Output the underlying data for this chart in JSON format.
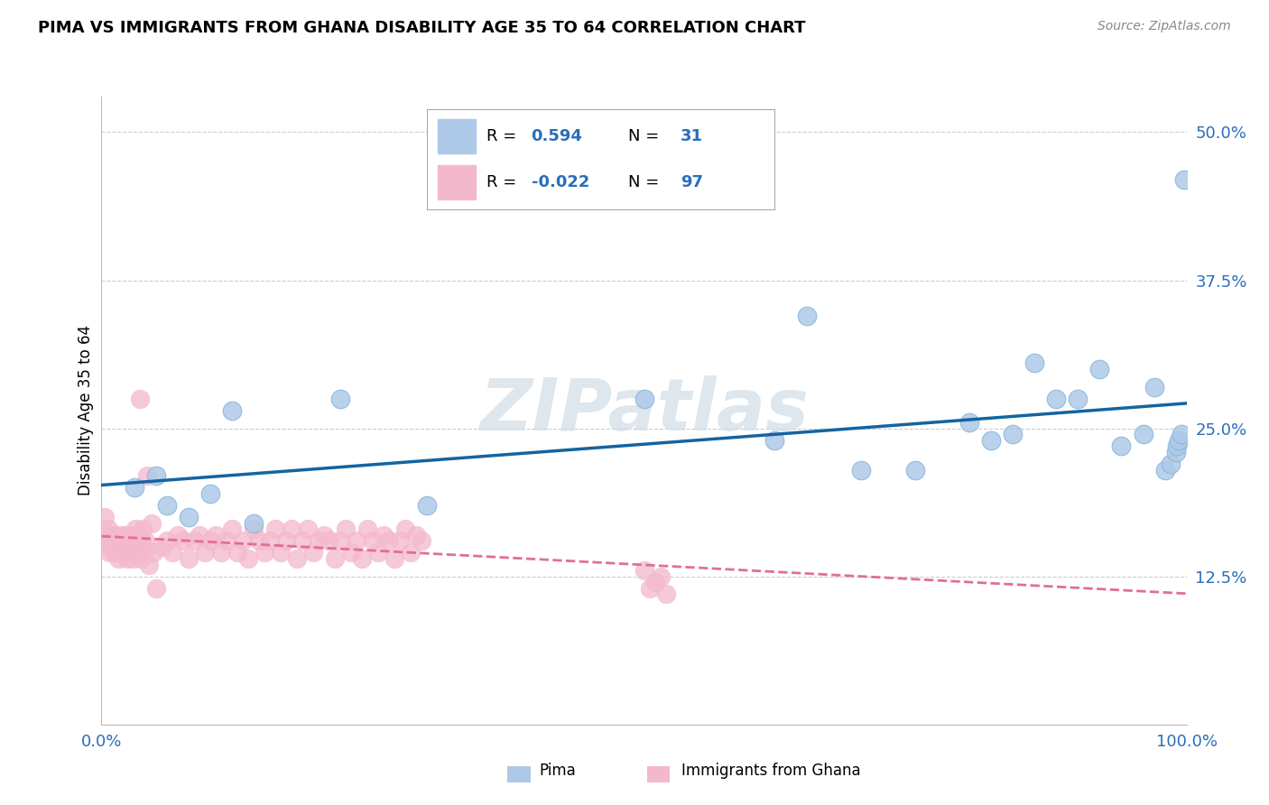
{
  "title": "PIMA VS IMMIGRANTS FROM GHANA DISABILITY AGE 35 TO 64 CORRELATION CHART",
  "source": "Source: ZipAtlas.com",
  "ylabel": "Disability Age 35 to 64",
  "xlim": [
    0.0,
    1.0
  ],
  "ylim": [
    0.0,
    0.53
  ],
  "yticks": [
    0.125,
    0.25,
    0.375,
    0.5
  ],
  "ytick_labels": [
    "12.5%",
    "25.0%",
    "37.5%",
    "50.0%"
  ],
  "xticks": [
    0.0,
    1.0
  ],
  "xtick_labels": [
    "0.0%",
    "100.0%"
  ],
  "pima_R": 0.594,
  "pima_N": 31,
  "ghana_R": -0.022,
  "ghana_N": 97,
  "pima_color": "#aec9e8",
  "ghana_color": "#f4b8cc",
  "pima_line_color": "#1464a0",
  "ghana_line_color": "#e07090",
  "background_color": "#ffffff",
  "grid_color": "#cccccc",
  "watermark": "ZIPatlas",
  "title_fontsize": 13,
  "label_color": "#2a6ebb",
  "pima_x": [
    0.03,
    0.05,
    0.06,
    0.08,
    0.1,
    0.12,
    0.14,
    0.22,
    0.3,
    0.5,
    0.62,
    0.65,
    0.7,
    0.75,
    0.8,
    0.82,
    0.84,
    0.86,
    0.88,
    0.9,
    0.92,
    0.94,
    0.96,
    0.97,
    0.98,
    0.985,
    0.99,
    0.991,
    0.993,
    0.995,
    0.998
  ],
  "pima_y": [
    0.2,
    0.21,
    0.185,
    0.175,
    0.195,
    0.265,
    0.17,
    0.275,
    0.185,
    0.275,
    0.24,
    0.345,
    0.215,
    0.215,
    0.255,
    0.24,
    0.245,
    0.305,
    0.275,
    0.275,
    0.3,
    0.235,
    0.245,
    0.285,
    0.215,
    0.22,
    0.23,
    0.235,
    0.24,
    0.245,
    0.46
  ],
  "ghana_x": [
    0.003,
    0.004,
    0.005,
    0.006,
    0.007,
    0.008,
    0.009,
    0.01,
    0.011,
    0.012,
    0.013,
    0.014,
    0.015,
    0.016,
    0.017,
    0.018,
    0.019,
    0.02,
    0.021,
    0.022,
    0.023,
    0.024,
    0.025,
    0.026,
    0.027,
    0.028,
    0.029,
    0.03,
    0.031,
    0.032,
    0.033,
    0.034,
    0.035,
    0.036,
    0.037,
    0.038,
    0.039,
    0.04,
    0.042,
    0.044,
    0.046,
    0.048,
    0.05,
    0.055,
    0.06,
    0.065,
    0.07,
    0.075,
    0.08,
    0.085,
    0.09,
    0.095,
    0.1,
    0.105,
    0.11,
    0.115,
    0.12,
    0.125,
    0.13,
    0.135,
    0.14,
    0.145,
    0.15,
    0.155,
    0.16,
    0.165,
    0.17,
    0.175,
    0.18,
    0.185,
    0.19,
    0.195,
    0.2,
    0.205,
    0.21,
    0.215,
    0.22,
    0.225,
    0.23,
    0.235,
    0.24,
    0.245,
    0.25,
    0.255,
    0.26,
    0.265,
    0.27,
    0.275,
    0.28,
    0.285,
    0.29,
    0.295,
    0.5,
    0.505,
    0.51,
    0.515,
    0.52
  ],
  "ghana_y": [
    0.175,
    0.16,
    0.155,
    0.165,
    0.145,
    0.15,
    0.16,
    0.155,
    0.145,
    0.16,
    0.15,
    0.155,
    0.14,
    0.155,
    0.145,
    0.16,
    0.155,
    0.15,
    0.145,
    0.16,
    0.155,
    0.14,
    0.155,
    0.145,
    0.16,
    0.155,
    0.14,
    0.15,
    0.165,
    0.145,
    0.155,
    0.16,
    0.275,
    0.14,
    0.155,
    0.165,
    0.145,
    0.155,
    0.21,
    0.135,
    0.17,
    0.145,
    0.115,
    0.15,
    0.155,
    0.145,
    0.16,
    0.155,
    0.14,
    0.155,
    0.16,
    0.145,
    0.155,
    0.16,
    0.145,
    0.155,
    0.165,
    0.145,
    0.155,
    0.14,
    0.165,
    0.155,
    0.145,
    0.155,
    0.165,
    0.145,
    0.155,
    0.165,
    0.14,
    0.155,
    0.165,
    0.145,
    0.155,
    0.16,
    0.155,
    0.14,
    0.155,
    0.165,
    0.145,
    0.155,
    0.14,
    0.165,
    0.155,
    0.145,
    0.16,
    0.155,
    0.14,
    0.155,
    0.165,
    0.145,
    0.16,
    0.155,
    0.13,
    0.115,
    0.12,
    0.125,
    0.11
  ]
}
